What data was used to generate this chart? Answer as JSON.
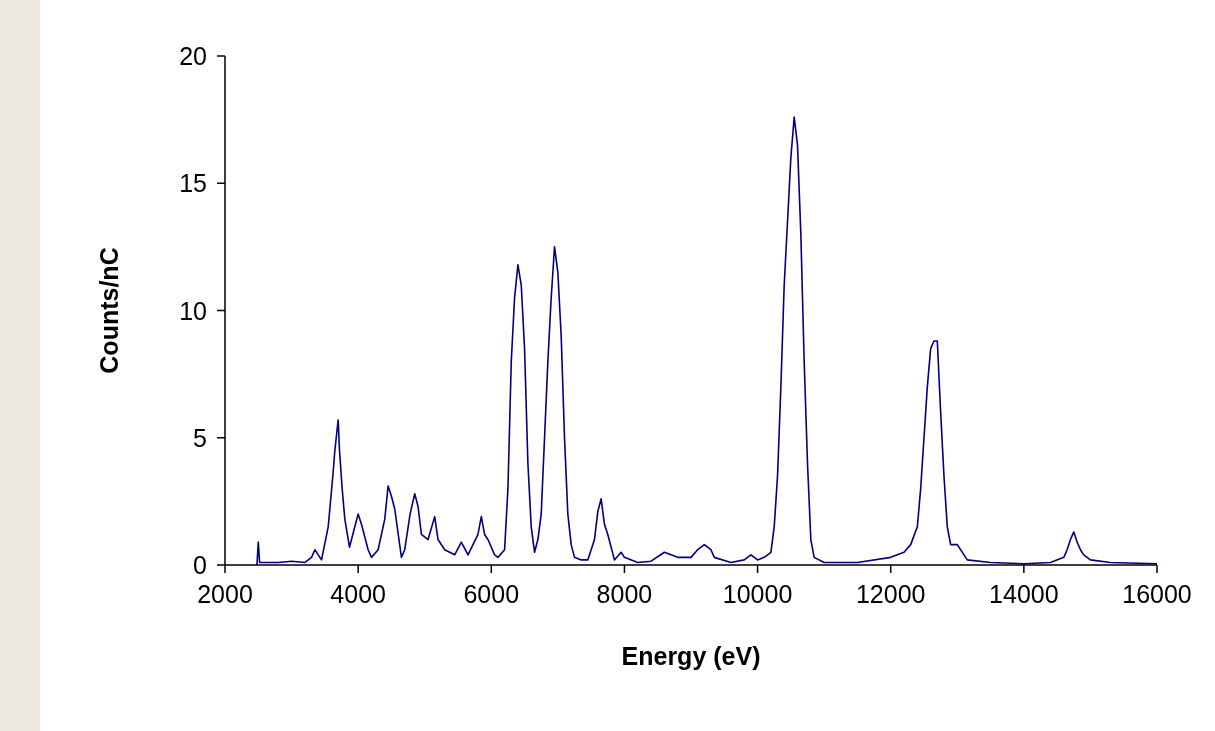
{
  "chart_data": {
    "type": "line",
    "xlabel": "Energy (eV)",
    "ylabel": "Counts/nC",
    "xlim": [
      2000,
      16000
    ],
    "ylim": [
      0,
      20
    ],
    "xticks": [
      2000,
      4000,
      6000,
      8000,
      10000,
      12000,
      14000,
      16000
    ],
    "yticks": [
      0,
      5,
      10,
      15,
      20
    ],
    "grid": false,
    "marker": "none",
    "line_style": "solid",
    "series": [
      {
        "color": "#000080",
        "x": [
          2480,
          2500,
          2520,
          2600,
          2800,
          3000,
          3200,
          3300,
          3350,
          3400,
          3450,
          3550,
          3620,
          3650,
          3700,
          3720,
          3760,
          3800,
          3870,
          3950,
          4000,
          4050,
          4150,
          4200,
          4300,
          4400,
          4450,
          4500,
          4550,
          4650,
          4700,
          4780,
          4850,
          4900,
          4950,
          5050,
          5150,
          5200,
          5300,
          5450,
          5550,
          5650,
          5800,
          5850,
          5900,
          5950,
          6050,
          6100,
          6200,
          6250,
          6300,
          6350,
          6400,
          6450,
          6500,
          6550,
          6600,
          6650,
          6700,
          6750,
          6800,
          6850,
          6900,
          6950,
          7000,
          7050,
          7100,
          7150,
          7200,
          7250,
          7350,
          7450,
          7550,
          7600,
          7650,
          7700,
          7750,
          7850,
          7950,
          8000,
          8200,
          8400,
          8600,
          8700,
          8800,
          9000,
          9100,
          9200,
          9300,
          9350,
          9600,
          9800,
          9900,
          10000,
          10100,
          10200,
          10250,
          10300,
          10350,
          10400,
          10450,
          10500,
          10550,
          10600,
          10650,
          10700,
          10750,
          10800,
          10850,
          11000,
          11500,
          12000,
          12100,
          12200,
          12300,
          12400,
          12450,
          12500,
          12550,
          12600,
          12650,
          12700,
          12750,
          12800,
          12850,
          12900,
          13000,
          13150,
          13500,
          14000,
          14400,
          14600,
          14650,
          14700,
          14750,
          14800,
          14850,
          14900,
          15000,
          15300,
          16000
        ],
        "values": [
          0,
          0.9,
          0.1,
          0.1,
          0.1,
          0.15,
          0.1,
          0.3,
          0.6,
          0.4,
          0.2,
          1.5,
          3.5,
          4.5,
          5.7,
          4.5,
          3.0,
          1.8,
          0.7,
          1.5,
          2.0,
          1.6,
          0.6,
          0.3,
          0.6,
          1.8,
          3.1,
          2.7,
          2.2,
          0.3,
          0.6,
          2.0,
          2.8,
          2.3,
          1.2,
          1.0,
          1.9,
          1.0,
          0.6,
          0.4,
          0.9,
          0.4,
          1.2,
          1.9,
          1.2,
          1.0,
          0.4,
          0.3,
          0.6,
          3.0,
          8.0,
          10.5,
          11.8,
          11.0,
          8.5,
          4.0,
          1.5,
          0.5,
          1.0,
          2.0,
          5.0,
          8.0,
          10.5,
          12.5,
          11.5,
          9.0,
          5.0,
          2.0,
          0.8,
          0.3,
          0.2,
          0.2,
          1.0,
          2.1,
          2.6,
          1.6,
          1.2,
          0.2,
          0.5,
          0.3,
          0.1,
          0.15,
          0.5,
          0.4,
          0.3,
          0.3,
          0.6,
          0.8,
          0.6,
          0.3,
          0.1,
          0.2,
          0.4,
          0.2,
          0.3,
          0.5,
          1.5,
          3.5,
          7.0,
          11.0,
          13.5,
          16.0,
          17.6,
          16.5,
          13.0,
          8.0,
          4.0,
          1.0,
          0.3,
          0.1,
          0.1,
          0.3,
          0.4,
          0.5,
          0.8,
          1.5,
          3.0,
          5.0,
          7.0,
          8.5,
          8.8,
          8.8,
          6.0,
          3.5,
          1.5,
          0.8,
          0.8,
          0.2,
          0.1,
          0.05,
          0.1,
          0.3,
          0.6,
          1.0,
          1.3,
          0.9,
          0.6,
          0.4,
          0.2,
          0.1,
          0.05
        ]
      }
    ]
  }
}
